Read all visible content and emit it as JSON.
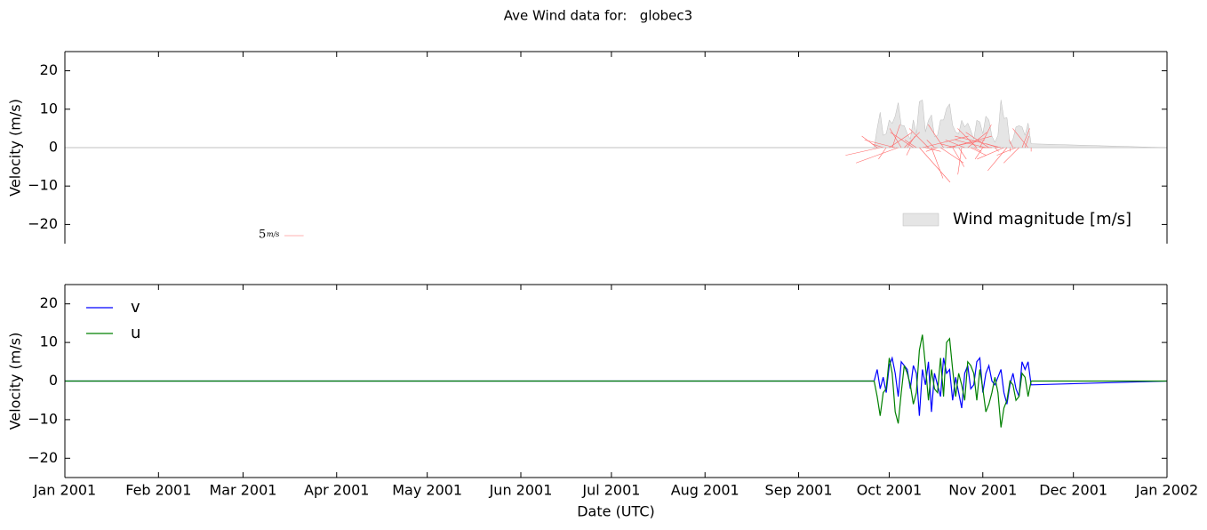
{
  "title": "Ave Wind data for:   globec3",
  "chart_data": [
    {
      "type": "stick",
      "ylabel": "Velocity (m/s)",
      "xlim": [
        0,
        365
      ],
      "xticks": [
        0,
        31,
        59,
        90,
        120,
        151,
        181,
        212,
        243,
        273,
        304,
        334,
        365
      ],
      "ylim": [
        -25,
        25
      ],
      "yticks": [
        {
          "value": -20,
          "label": "−20"
        },
        {
          "value": -10,
          "label": "−10"
        },
        0,
        10,
        20
      ],
      "x": [
        0,
        268,
        269,
        270,
        271,
        272,
        273,
        274,
        275,
        276,
        277,
        278,
        279,
        280,
        281,
        282,
        283,
        284,
        285,
        286,
        287,
        288,
        289,
        290,
        291,
        292,
        293,
        294,
        295,
        296,
        297,
        298,
        299,
        300,
        301,
        302,
        303,
        304,
        305,
        306,
        307,
        308,
        309,
        310,
        311,
        312,
        313,
        314,
        315,
        316,
        317,
        318,
        319,
        320,
        365
      ],
      "series": [
        {
          "name": "Wind magnitude [m/s]",
          "color": "#e5e5e5",
          "values": [
            0,
            0,
            5,
            9.2,
            3.2,
            3.6,
            7.2,
            6.3,
            8.2,
            11.7,
            5.8,
            5.7,
            3.6,
            2.2,
            7.2,
            3.6,
            12,
            12.4,
            4.1,
            7.1,
            8.5,
            2.8,
            3.2,
            7.2,
            7.2,
            10.2,
            11.4,
            5.8,
            4.1,
            3.6,
            7.1,
            5.4,
            6.4,
            4.5,
            2.2,
            7.1,
            6.7,
            3.6,
            8.2,
            7.2,
            3,
            1.4,
            3.2,
            12.4,
            7.6,
            7.8,
            1,
            2.2,
            5.4,
            5.7,
            5.4,
            3.2,
            6.4,
            1,
            0
          ]
        }
      ],
      "stick_color": "#ff6666",
      "zero_line": true,
      "legend": "lower right",
      "key": {
        "value": 5,
        "unit": "m/s"
      }
    },
    {
      "type": "line",
      "ylabel": "Velocity (m/s)",
      "xlabel": "Date (UTC)",
      "xlim": [
        0,
        365
      ],
      "xticks": [
        {
          "value": 0,
          "label": "Jan 2001"
        },
        {
          "value": 31,
          "label": "Feb 2001"
        },
        {
          "value": 59,
          "label": "Mar 2001"
        },
        {
          "value": 90,
          "label": "Apr 2001"
        },
        {
          "value": 120,
          "label": "May 2001"
        },
        {
          "value": 151,
          "label": "Jun 2001"
        },
        {
          "value": 181,
          "label": "Jul 2001"
        },
        {
          "value": 212,
          "label": "Aug 2001"
        },
        {
          "value": 243,
          "label": "Sep 2001"
        },
        {
          "value": 273,
          "label": "Oct 2001"
        },
        {
          "value": 304,
          "label": "Nov 2001"
        },
        {
          "value": 334,
          "label": "Dec 2001"
        },
        {
          "value": 365,
          "label": "Jan 2002"
        }
      ],
      "ylim": [
        -25,
        25
      ],
      "yticks": [
        {
          "value": -20,
          "label": "−20"
        },
        {
          "value": -10,
          "label": "−10"
        },
        0,
        10,
        20
      ],
      "x": [
        0,
        268,
        269,
        270,
        271,
        272,
        273,
        274,
        275,
        276,
        277,
        278,
        279,
        280,
        281,
        282,
        283,
        284,
        285,
        286,
        287,
        288,
        289,
        290,
        291,
        292,
        293,
        294,
        295,
        296,
        297,
        298,
        299,
        300,
        301,
        302,
        303,
        304,
        305,
        306,
        307,
        308,
        309,
        310,
        311,
        312,
        313,
        314,
        315,
        316,
        317,
        318,
        319,
        320,
        365
      ],
      "series": [
        {
          "name": "v",
          "color": "#0000ff",
          "values": [
            0,
            0,
            3,
            -2,
            1,
            -3,
            4,
            6,
            2,
            -4,
            5,
            4,
            3,
            -2,
            4,
            2,
            -9,
            3,
            -1,
            5,
            -8,
            2,
            -1,
            -4,
            6,
            2,
            3,
            -5,
            1,
            -3,
            -7,
            2,
            4,
            -2,
            -1,
            5,
            6,
            -3,
            2,
            4,
            0,
            -1,
            1,
            3,
            -3,
            -6,
            -1,
            2,
            -2,
            -4,
            5,
            3,
            5,
            -1,
            0
          ]
        },
        {
          "name": "u",
          "color": "#008000",
          "values": [
            0,
            0,
            -4,
            -9,
            -3,
            -2,
            6,
            2,
            -8,
            -11,
            -3,
            4,
            2,
            -1,
            -6,
            -3,
            8,
            12,
            4,
            -5,
            3,
            -2,
            -3,
            6,
            -4,
            10,
            11,
            3,
            -4,
            2,
            -1,
            -5,
            5,
            4,
            2,
            -5,
            3,
            -2,
            -8,
            -6,
            -3,
            1,
            -3,
            -12,
            -7,
            -5,
            0,
            -1,
            -5,
            -4,
            2,
            1,
            -4,
            0,
            0
          ]
        }
      ],
      "legend": "upper left"
    }
  ]
}
